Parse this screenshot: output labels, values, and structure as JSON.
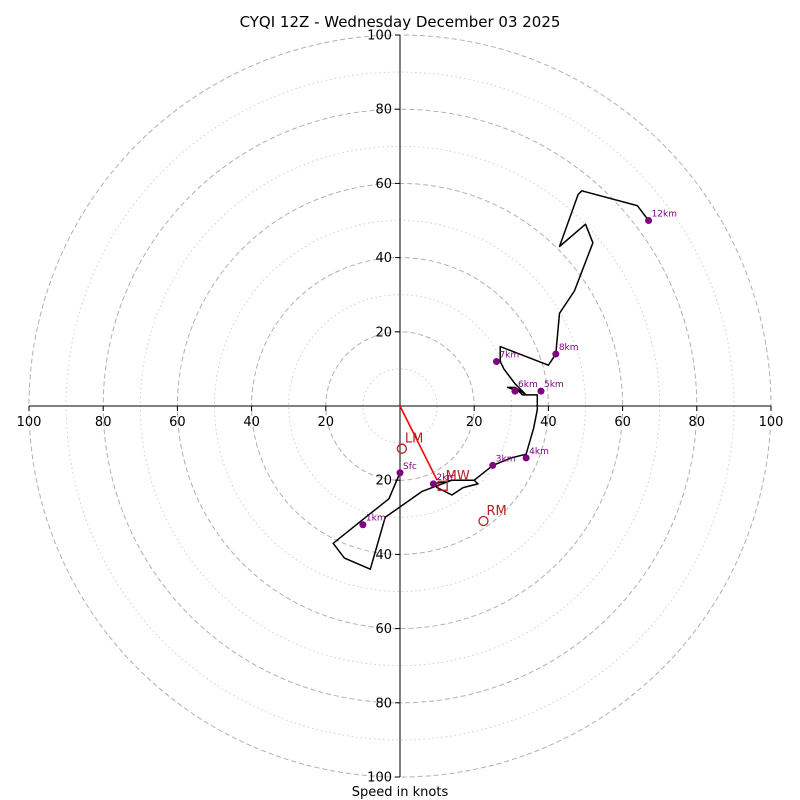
{
  "chart_data": {
    "type": "hodograph",
    "title": "CYQI 12Z - Wednesday December 03 2025",
    "xlabel": "Speed in knots",
    "units": "knots",
    "range": [
      -100,
      100
    ],
    "ring_labels": [
      20,
      40,
      60,
      80,
      100
    ],
    "tick_values": [
      -100,
      -80,
      -60,
      -40,
      -20,
      20,
      40,
      60,
      80,
      100
    ],
    "tick_labels": [
      "100",
      "80",
      "60",
      "40",
      "20",
      "20",
      "40",
      "60",
      "80",
      "100"
    ],
    "rings_major": [
      20,
      40,
      60,
      80,
      100
    ],
    "rings_minor": [
      10,
      30,
      50,
      70,
      90
    ],
    "wind_trace": [
      [
        0,
        -18
      ],
      [
        -3,
        -25
      ],
      [
        -8,
        -29
      ],
      [
        -18,
        -37
      ],
      [
        -15,
        -41
      ],
      [
        -8,
        -44
      ],
      [
        -4,
        -30
      ],
      [
        6,
        -23
      ],
      [
        14,
        -20
      ],
      [
        20,
        -20
      ],
      [
        21,
        -21
      ],
      [
        17,
        -22
      ],
      [
        14,
        -24
      ],
      [
        10,
        -22
      ],
      [
        9,
        -21
      ],
      [
        14,
        -20
      ],
      [
        20,
        -20
      ],
      [
        25,
        -16
      ],
      [
        30,
        -14
      ],
      [
        34,
        -13
      ],
      [
        36,
        -6
      ],
      [
        37,
        -1
      ],
      [
        37,
        3
      ],
      [
        33,
        3
      ],
      [
        32,
        4
      ],
      [
        29,
        5
      ],
      [
        31,
        5
      ],
      [
        34,
        3
      ],
      [
        31,
        6
      ],
      [
        28,
        10
      ],
      [
        27,
        12
      ],
      [
        27,
        16
      ],
      [
        40,
        11
      ],
      [
        42,
        14
      ],
      [
        43,
        25
      ],
      [
        47,
        31
      ],
      [
        52,
        44
      ],
      [
        50,
        49
      ],
      [
        43,
        43
      ],
      [
        48,
        57
      ],
      [
        49,
        58
      ],
      [
        64,
        54
      ],
      [
        67,
        50
      ]
    ],
    "height_markers": [
      {
        "label": "Sfc",
        "u": 0,
        "v": -18
      },
      {
        "label": "1km",
        "u": -10,
        "v": -32
      },
      {
        "label": "2km",
        "u": 9,
        "v": -21
      },
      {
        "label": "3km",
        "u": 25,
        "v": -16
      },
      {
        "label": "4km",
        "u": 34,
        "v": -14
      },
      {
        "label": "5km",
        "u": 38,
        "v": 4
      },
      {
        "label": "6km",
        "u": 31,
        "v": 4
      },
      {
        "label": "7km",
        "u": 26,
        "v": 12
      },
      {
        "label": "8km",
        "u": 42,
        "v": 14
      },
      {
        "label": "12km",
        "u": 67,
        "v": 50
      }
    ],
    "storm_motion": [
      {
        "label": "LM",
        "u": 0.5,
        "v": -11.5,
        "marker": "circle"
      },
      {
        "label": "MW",
        "u": 11.5,
        "v": -21.5,
        "marker": "square"
      },
      {
        "label": "RM",
        "u": 22.5,
        "v": -31,
        "marker": "circle"
      }
    ],
    "shear_vector": {
      "from": [
        0,
        0
      ],
      "to": [
        10,
        -20
      ]
    },
    "colors": {
      "trace": "#000000",
      "marker": "#800080",
      "storm": "#b22222",
      "vector": "#ff0000",
      "grid": "#b0b0b0"
    }
  }
}
